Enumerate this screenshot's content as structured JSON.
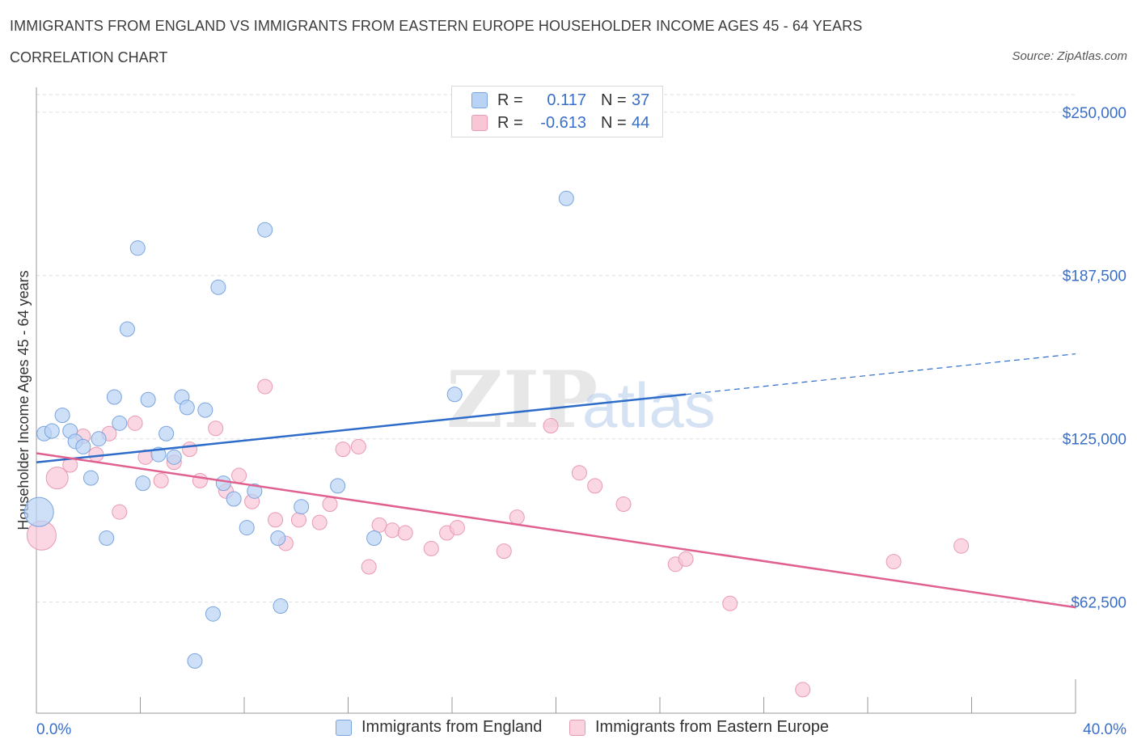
{
  "header": {
    "title": "IMMIGRANTS FROM ENGLAND VS IMMIGRANTS FROM EASTERN EUROPE HOUSEHOLDER INCOME AGES 45 - 64 YEARS",
    "subtitle": "CORRELATION CHART",
    "source": "Source: ZipAtlas.com"
  },
  "watermark": {
    "zip": "ZIP",
    "atlas": "atlas"
  },
  "legend": {
    "r_label": "R =",
    "n_label": "N =",
    "rows": [
      {
        "r": "0.117",
        "n": "37"
      },
      {
        "r": "-0.613",
        "n": "44"
      }
    ]
  },
  "colors": {
    "england_fill": "#b9d3f5",
    "england_stroke": "#7aa4dd",
    "england_line": "#2e6cc9",
    "eastern_fill": "#f8c6d5",
    "eastern_stroke": "#e89ab3",
    "eastern_line": "#e0608f",
    "axis_text": "#3a6fc8",
    "grid": "#dddddd"
  },
  "chart_data": {
    "type": "scatter",
    "title": "IMMIGRANTS FROM ENGLAND VS IMMIGRANTS FROM EASTERN EUROPE HOUSEHOLDER INCOME AGES 45 - 64 YEARS",
    "xlabel": "",
    "ylabel": "Householder Income Ages 45 - 64 years",
    "xlim": [
      0,
      40
    ],
    "ylim": [
      20000,
      262000
    ],
    "x_tick_labels": [
      "0.0%",
      "40.0%"
    ],
    "y_ticks": [
      62500,
      125000,
      187500,
      250000
    ],
    "y_tick_labels": [
      "$62,500",
      "$125,000",
      "$187,500",
      "$250,000"
    ],
    "grid": true,
    "legend_position": "bottom",
    "series": [
      {
        "name": "Immigrants from England",
        "points": [
          {
            "x": 0.1,
            "y": 97000,
            "s": 2
          },
          {
            "x": 0.3,
            "y": 127000,
            "s": 1
          },
          {
            "x": 0.6,
            "y": 128000,
            "s": 1
          },
          {
            "x": 1.0,
            "y": 134000,
            "s": 1
          },
          {
            "x": 1.3,
            "y": 128000,
            "s": 1
          },
          {
            "x": 1.5,
            "y": 124000,
            "s": 1
          },
          {
            "x": 1.8,
            "y": 122000,
            "s": 1
          },
          {
            "x": 2.1,
            "y": 110000,
            "s": 1
          },
          {
            "x": 2.4,
            "y": 125000,
            "s": 1
          },
          {
            "x": 2.7,
            "y": 87000,
            "s": 1
          },
          {
            "x": 3.0,
            "y": 141000,
            "s": 1
          },
          {
            "x": 3.2,
            "y": 131000,
            "s": 1
          },
          {
            "x": 3.5,
            "y": 167000,
            "s": 1
          },
          {
            "x": 3.9,
            "y": 198000,
            "s": 1
          },
          {
            "x": 4.1,
            "y": 108000,
            "s": 1
          },
          {
            "x": 4.3,
            "y": 140000,
            "s": 1
          },
          {
            "x": 4.7,
            "y": 119000,
            "s": 1
          },
          {
            "x": 5.0,
            "y": 127000,
            "s": 1
          },
          {
            "x": 5.3,
            "y": 118000,
            "s": 1
          },
          {
            "x": 5.6,
            "y": 141000,
            "s": 1
          },
          {
            "x": 5.8,
            "y": 137000,
            "s": 1
          },
          {
            "x": 6.1,
            "y": 40000,
            "s": 1
          },
          {
            "x": 6.5,
            "y": 136000,
            "s": 1
          },
          {
            "x": 6.8,
            "y": 58000,
            "s": 1
          },
          {
            "x": 7.0,
            "y": 183000,
            "s": 1
          },
          {
            "x": 7.2,
            "y": 108000,
            "s": 1
          },
          {
            "x": 7.6,
            "y": 102000,
            "s": 1
          },
          {
            "x": 8.1,
            "y": 91000,
            "s": 1
          },
          {
            "x": 8.4,
            "y": 105000,
            "s": 1
          },
          {
            "x": 8.8,
            "y": 205000,
            "s": 1
          },
          {
            "x": 9.3,
            "y": 87000,
            "s": 1
          },
          {
            "x": 9.4,
            "y": 61000,
            "s": 1
          },
          {
            "x": 10.2,
            "y": 99000,
            "s": 1
          },
          {
            "x": 11.6,
            "y": 107000,
            "s": 1
          },
          {
            "x": 13.0,
            "y": 87000,
            "s": 1
          },
          {
            "x": 16.1,
            "y": 142000,
            "s": 1
          },
          {
            "x": 20.4,
            "y": 217000,
            "s": 1
          }
        ],
        "trend": {
          "x": [
            0,
            25
          ],
          "y": [
            116000,
            142000
          ]
        },
        "trend_extension": {
          "x": [
            25,
            40
          ],
          "y": [
            142000,
            157500
          ]
        }
      },
      {
        "name": "Immigrants from Eastern Europe",
        "points": [
          {
            "x": 0.2,
            "y": 88000,
            "s": 2
          },
          {
            "x": 0.8,
            "y": 110000,
            "s": 1.5
          },
          {
            "x": 1.3,
            "y": 115000,
            "s": 1
          },
          {
            "x": 1.8,
            "y": 126000,
            "s": 1
          },
          {
            "x": 2.3,
            "y": 119000,
            "s": 1
          },
          {
            "x": 2.8,
            "y": 127000,
            "s": 1
          },
          {
            "x": 3.2,
            "y": 97000,
            "s": 1
          },
          {
            "x": 3.8,
            "y": 131000,
            "s": 1
          },
          {
            "x": 4.2,
            "y": 118000,
            "s": 1
          },
          {
            "x": 4.8,
            "y": 109000,
            "s": 1
          },
          {
            "x": 5.3,
            "y": 116000,
            "s": 1
          },
          {
            "x": 5.9,
            "y": 121000,
            "s": 1
          },
          {
            "x": 6.3,
            "y": 109000,
            "s": 1
          },
          {
            "x": 6.9,
            "y": 129000,
            "s": 1
          },
          {
            "x": 7.3,
            "y": 105000,
            "s": 1
          },
          {
            "x": 7.8,
            "y": 111000,
            "s": 1
          },
          {
            "x": 8.3,
            "y": 101000,
            "s": 1
          },
          {
            "x": 8.8,
            "y": 145000,
            "s": 1
          },
          {
            "x": 9.2,
            "y": 94000,
            "s": 1
          },
          {
            "x": 9.6,
            "y": 85000,
            "s": 1
          },
          {
            "x": 10.1,
            "y": 94000,
            "s": 1
          },
          {
            "x": 10.9,
            "y": 93000,
            "s": 1
          },
          {
            "x": 11.3,
            "y": 100000,
            "s": 1
          },
          {
            "x": 11.8,
            "y": 121000,
            "s": 1
          },
          {
            "x": 12.4,
            "y": 122000,
            "s": 1
          },
          {
            "x": 12.8,
            "y": 76000,
            "s": 1
          },
          {
            "x": 13.2,
            "y": 92000,
            "s": 1
          },
          {
            "x": 13.7,
            "y": 90000,
            "s": 1
          },
          {
            "x": 14.2,
            "y": 89000,
            "s": 1
          },
          {
            "x": 15.2,
            "y": 83000,
            "s": 1
          },
          {
            "x": 15.8,
            "y": 89000,
            "s": 1
          },
          {
            "x": 16.2,
            "y": 91000,
            "s": 1
          },
          {
            "x": 18.0,
            "y": 82000,
            "s": 1
          },
          {
            "x": 18.5,
            "y": 95000,
            "s": 1
          },
          {
            "x": 19.8,
            "y": 130000,
            "s": 1
          },
          {
            "x": 20.9,
            "y": 112000,
            "s": 1
          },
          {
            "x": 21.5,
            "y": 107000,
            "s": 1
          },
          {
            "x": 22.6,
            "y": 100000,
            "s": 1
          },
          {
            "x": 24.6,
            "y": 77000,
            "s": 1
          },
          {
            "x": 25.0,
            "y": 79000,
            "s": 1
          },
          {
            "x": 26.7,
            "y": 62000,
            "s": 1
          },
          {
            "x": 29.5,
            "y": 29000,
            "s": 1
          },
          {
            "x": 33.0,
            "y": 78000,
            "s": 1
          },
          {
            "x": 35.6,
            "y": 84000,
            "s": 1
          }
        ],
        "trend": {
          "x": [
            0,
            40
          ],
          "y": [
            119500,
            60500
          ]
        }
      }
    ]
  }
}
